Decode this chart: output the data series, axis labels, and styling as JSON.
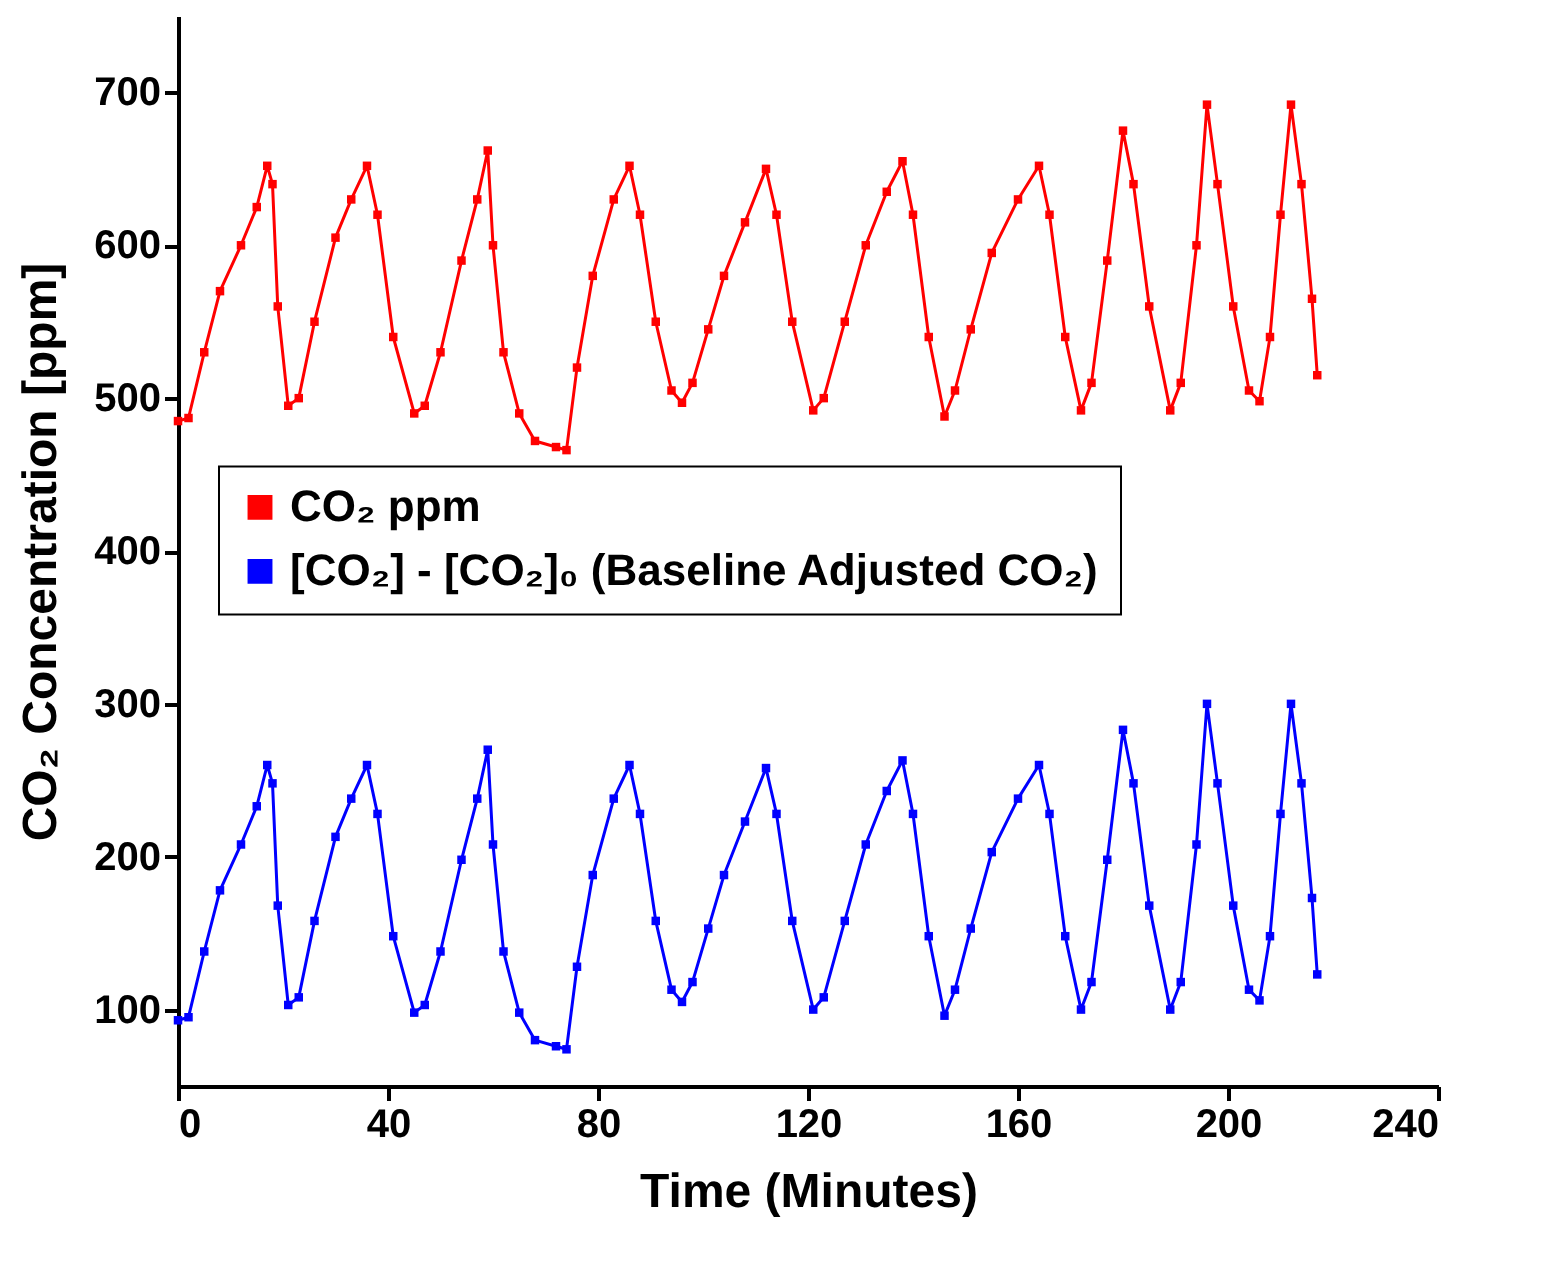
{
  "chart_data": {
    "type": "line",
    "xlabel": "Time (Minutes)",
    "ylabel": "CO₂ Concentration [ppm]",
    "x": [
      0,
      2,
      5,
      8,
      12,
      15,
      17,
      18,
      19,
      21,
      23,
      26,
      30,
      33,
      36,
      38,
      41,
      45,
      47,
      50,
      54,
      57,
      59,
      60,
      62,
      65,
      68,
      72,
      74,
      76,
      79,
      83,
      86,
      88,
      91,
      94,
      96,
      98,
      101,
      104,
      108,
      112,
      114,
      117,
      121,
      123,
      127,
      131,
      135,
      138,
      140,
      143,
      146,
      148,
      151,
      155,
      160,
      164,
      166,
      169,
      172,
      174,
      177,
      180,
      182,
      185,
      189,
      191,
      194,
      196,
      198,
      201,
      204,
      206,
      208,
      210,
      212,
      214,
      216,
      217
    ],
    "series": [
      {
        "name": "CO₂ ppm",
        "color": "#ff0000",
        "values": [
          485,
          487,
          530,
          570,
          600,
          625,
          652,
          640,
          560,
          495,
          500,
          550,
          605,
          630,
          652,
          620,
          540,
          490,
          495,
          530,
          590,
          630,
          662,
          600,
          530,
          490,
          472,
          468,
          466,
          520,
          580,
          630,
          652,
          620,
          550,
          505,
          497,
          510,
          545,
          580,
          615,
          650,
          620,
          550,
          492,
          500,
          550,
          600,
          635,
          655,
          620,
          540,
          488,
          505,
          545,
          595,
          630,
          652,
          620,
          540,
          492,
          510,
          590,
          675,
          640,
          560,
          492,
          510,
          600,
          692,
          640,
          560,
          505,
          498,
          540,
          620,
          692,
          640,
          565,
          515
        ]
      },
      {
        "name": "[CO₂] - [CO₂]₀ (Baseline Adjusted CO₂)",
        "color": "#0000ff",
        "values": [
          93,
          95,
          138,
          178,
          208,
          233,
          260,
          248,
          168,
          103,
          108,
          158,
          213,
          238,
          260,
          228,
          148,
          98,
          103,
          138,
          198,
          238,
          270,
          208,
          138,
          98,
          80,
          76,
          74,
          128,
          188,
          238,
          260,
          228,
          158,
          113,
          105,
          118,
          153,
          188,
          223,
          258,
          228,
          158,
          100,
          108,
          158,
          208,
          243,
          263,
          228,
          148,
          96,
          113,
          153,
          203,
          238,
          260,
          228,
          148,
          100,
          118,
          198,
          283,
          248,
          168,
          100,
          118,
          208,
          300,
          248,
          168,
          113,
          106,
          148,
          228,
          300,
          248,
          173,
          123
        ]
      }
    ],
    "xlim": [
      0,
      240
    ],
    "xticks": [
      0,
      40,
      80,
      120,
      160,
      200,
      240
    ],
    "ylim": [
      50,
      750
    ],
    "yticks": [
      100,
      200,
      300,
      400,
      500,
      600,
      700
    ],
    "grid": false,
    "legend": "left",
    "marker": "square",
    "line_style": "solid"
  }
}
